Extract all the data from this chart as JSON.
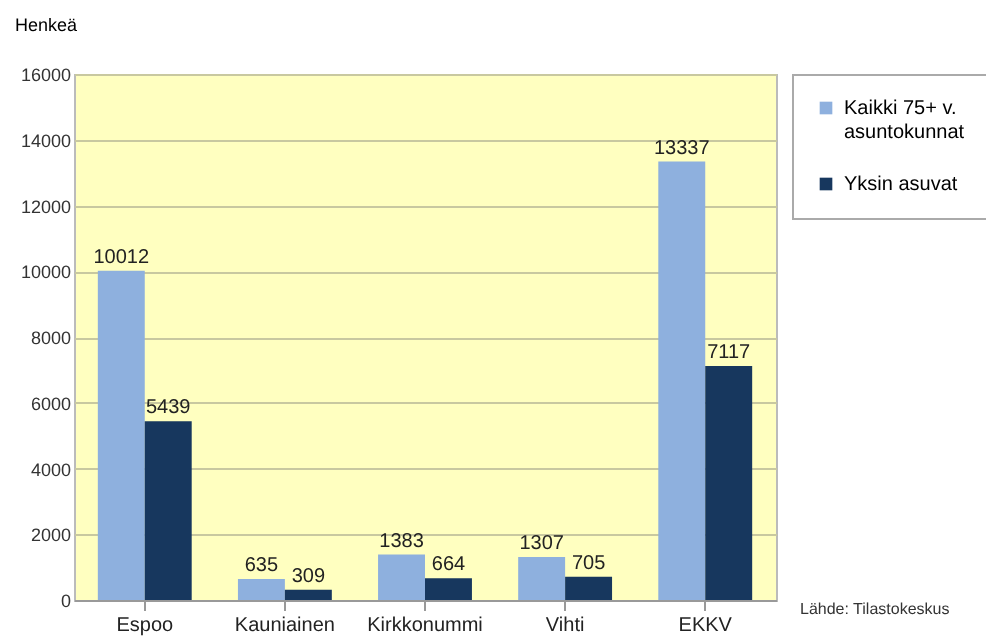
{
  "chart_data": {
    "type": "bar",
    "ylabel": "Henkeä",
    "categories": [
      "Espoo",
      "Kauniainen",
      "Kirkkonummi",
      "Vihti",
      "EKKV"
    ],
    "series": [
      {
        "name": "Kaikki 75+ v. asuntokunnat",
        "color": "#8eb0de",
        "values": [
          10012,
          635,
          1383,
          1307,
          13337
        ]
      },
      {
        "name": "Yksin asuvat",
        "color": "#17375e",
        "values": [
          5439,
          309,
          664,
          705,
          7117
        ]
      }
    ],
    "ylim": [
      0,
      16000
    ],
    "yticks": [
      0,
      2000,
      4000,
      6000,
      8000,
      10000,
      12000,
      14000,
      16000
    ],
    "grid": "y",
    "legend": "right",
    "data_labels": true,
    "annotations": [
      "Lähde: Tilastokeskus"
    ]
  }
}
